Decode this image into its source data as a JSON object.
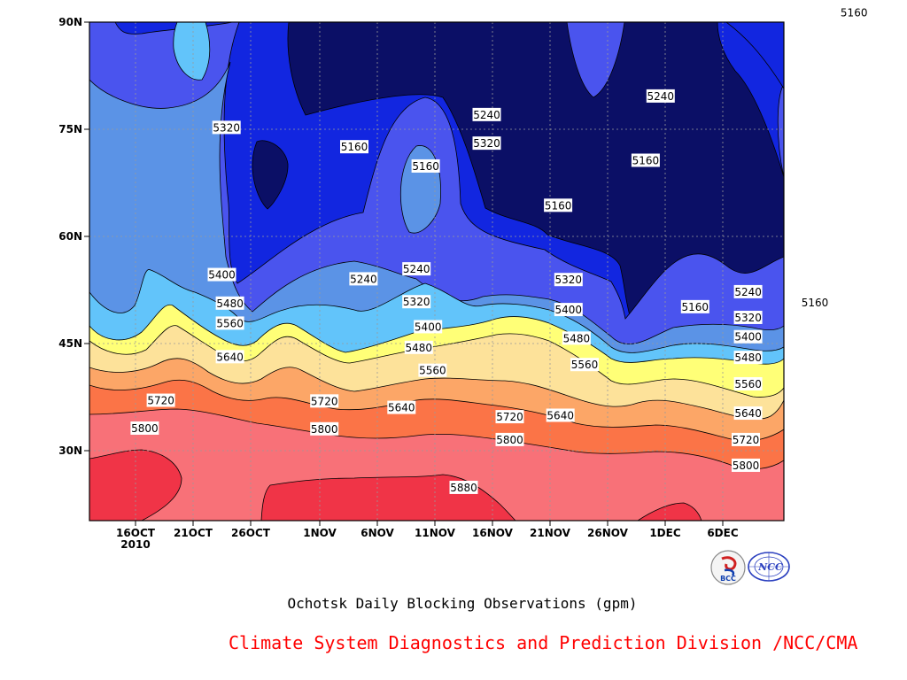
{
  "chart_data": {
    "type": "contour",
    "title": "Ochotsk Daily Blocking Observations (gpm)",
    "credit": "Climate System Diagnostics and Prediction Division /NCC/CMA",
    "x_ticks": [
      {
        "label": "16OCT",
        "sub": "2010"
      },
      {
        "label": "21OCT"
      },
      {
        "label": "26OCT"
      },
      {
        "label": "1NOV"
      },
      {
        "label": "6NOV"
      },
      {
        "label": "11NOV"
      },
      {
        "label": "16NOV"
      },
      {
        "label": "21NOV"
      },
      {
        "label": "26NOV"
      },
      {
        "label": "1DEC"
      },
      {
        "label": "6DEC"
      }
    ],
    "y_ticks": [
      "30N",
      "45N",
      "60N",
      "75N",
      "90N"
    ],
    "contour_levels": [
      5160,
      5240,
      5320,
      5400,
      5480,
      5560,
      5640,
      5720,
      5800,
      5880
    ],
    "level_colors": [
      "#0b0f66",
      "#1226e0",
      "#4a54ee",
      "#5b93e6",
      "#62c4fa",
      "#ffff77",
      "#fde29a",
      "#fca667",
      "#fb7447",
      "#f87178",
      "#f03447"
    ],
    "contour_labels": [
      {
        "text": "5320",
        "day": 7.9,
        "lat": 75.2
      },
      {
        "text": "5160",
        "day": 19.0,
        "lat": 72.5
      },
      {
        "text": "5160",
        "day": 25.2,
        "lat": 69.8
      },
      {
        "text": "5240",
        "day": 30.5,
        "lat": 77.0
      },
      {
        "text": "5320",
        "day": 30.5,
        "lat": 73.0
      },
      {
        "text": "5240",
        "day": 45.6,
        "lat": 79.6
      },
      {
        "text": "5160",
        "day": 44.3,
        "lat": 70.6
      },
      {
        "text": "5160",
        "day": 36.7,
        "lat": 64.3
      },
      {
        "text": "5240",
        "day": 19.8,
        "lat": 54.0
      },
      {
        "text": "5240",
        "day": 24.4,
        "lat": 55.4
      },
      {
        "text": "5400",
        "day": 7.5,
        "lat": 54.6
      },
      {
        "text": "5480",
        "day": 8.2,
        "lat": 50.6
      },
      {
        "text": "5560",
        "day": 8.2,
        "lat": 47.8
      },
      {
        "text": "5640",
        "day": 8.2,
        "lat": 43.1
      },
      {
        "text": "5720",
        "day": 2.2,
        "lat": 37.0
      },
      {
        "text": "5800",
        "day": 0.8,
        "lat": 33.1
      },
      {
        "text": "5320",
        "day": 24.4,
        "lat": 50.8
      },
      {
        "text": "5400",
        "day": 25.4,
        "lat": 47.3
      },
      {
        "text": "5480",
        "day": 24.6,
        "lat": 44.4
      },
      {
        "text": "5560",
        "day": 25.8,
        "lat": 41.2
      },
      {
        "text": "5720",
        "day": 16.4,
        "lat": 36.9
      },
      {
        "text": "5800",
        "day": 16.4,
        "lat": 33.0
      },
      {
        "text": "5640",
        "day": 23.1,
        "lat": 36.0
      },
      {
        "text": "5720",
        "day": 32.5,
        "lat": 34.7
      },
      {
        "text": "5800",
        "day": 32.5,
        "lat": 31.5
      },
      {
        "text": "5880",
        "day": 28.5,
        "lat": 24.8
      },
      {
        "text": "5320",
        "day": 37.6,
        "lat": 53.9
      },
      {
        "text": "5400",
        "day": 37.6,
        "lat": 49.7
      },
      {
        "text": "5480",
        "day": 38.3,
        "lat": 45.7
      },
      {
        "text": "5560",
        "day": 39.0,
        "lat": 42.0
      },
      {
        "text": "5640",
        "day": 36.9,
        "lat": 34.9
      },
      {
        "text": "5160",
        "day": 48.6,
        "lat": 50.1
      },
      {
        "text": "5240",
        "day": 53.2,
        "lat": 52.2
      },
      {
        "text": "5320",
        "day": 53.2,
        "lat": 48.6
      },
      {
        "text": "5400",
        "day": 53.2,
        "lat": 45.9
      },
      {
        "text": "5480",
        "day": 53.2,
        "lat": 43.0
      },
      {
        "text": "5560",
        "day": 53.2,
        "lat": 39.3
      },
      {
        "text": "5640",
        "day": 53.2,
        "lat": 35.2
      },
      {
        "text": "5720",
        "day": 53.0,
        "lat": 31.5
      },
      {
        "text": "5800",
        "day": 53.0,
        "lat": 27.9
      },
      {
        "text": "5160",
        "day": 59.0,
        "lat": 50.7
      },
      {
        "text": "5160",
        "day": 62.4,
        "lat": 91.3
      }
    ]
  },
  "logos": [
    "bcc-logo",
    "ncc-logo"
  ],
  "logo_text": [
    "BCC",
    "NCC"
  ]
}
